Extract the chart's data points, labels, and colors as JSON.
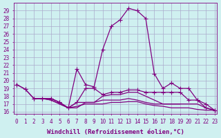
{
  "xlabel": "Windchill (Refroidissement éolien,°C)",
  "bg_color": "#cff0f0",
  "line_color": "#800080",
  "grid_color": "#aaaacc",
  "x_ticks": [
    0,
    1,
    2,
    3,
    4,
    5,
    6,
    7,
    8,
    9,
    10,
    11,
    12,
    13,
    14,
    15,
    16,
    17,
    18,
    19,
    20,
    21,
    22,
    23
  ],
  "y_ticks": [
    16,
    17,
    18,
    19,
    20,
    21,
    22,
    23,
    24,
    25,
    26,
    27,
    28,
    29
  ],
  "ylim": [
    15.7,
    30.0
  ],
  "xlim": [
    -0.3,
    23.3
  ],
  "series": [
    {
      "y": [
        19.5,
        18.9,
        17.7,
        17.7,
        17.7,
        17.2,
        16.5,
        17.2,
        19.0,
        19.0,
        18.2,
        18.5,
        18.5,
        18.8,
        18.8,
        18.5,
        18.5,
        18.5,
        18.5,
        18.5,
        17.5,
        17.5,
        16.5,
        16.2
      ],
      "marker": true
    },
    {
      "y": [
        19.5,
        18.9,
        17.7,
        17.7,
        17.7,
        17.2,
        16.5,
        21.5,
        19.5,
        19.2,
        24.0,
        27.0,
        27.8,
        29.3,
        29.0,
        28.0,
        20.9,
        19.0,
        19.7,
        19.0,
        19.0,
        17.5,
        17.0,
        16.2
      ],
      "marker": true
    },
    {
      "y": [
        null,
        null,
        17.7,
        17.7,
        17.7,
        17.2,
        16.5,
        17.2,
        17.2,
        17.2,
        17.5,
        17.5,
        17.5,
        17.7,
        17.5,
        17.2,
        17.0,
        17.0,
        17.0,
        17.0,
        17.0,
        17.0,
        16.5,
        16.2
      ],
      "marker": false
    },
    {
      "y": [
        null,
        null,
        17.7,
        17.7,
        17.5,
        17.0,
        16.5,
        16.7,
        17.0,
        17.0,
        17.0,
        17.2,
        17.2,
        17.3,
        17.3,
        17.0,
        16.8,
        16.7,
        16.5,
        16.5,
        16.5,
        16.3,
        16.2,
        16.2
      ],
      "marker": false
    },
    {
      "y": [
        null,
        null,
        17.7,
        17.7,
        17.5,
        17.0,
        16.5,
        16.5,
        17.2,
        17.2,
        18.0,
        18.2,
        18.2,
        18.5,
        18.5,
        18.0,
        17.5,
        17.0,
        17.0,
        17.0,
        null,
        null,
        null,
        null
      ],
      "marker": false
    }
  ],
  "marker_symbol": "+",
  "markersize": 4,
  "linewidth": 0.9,
  "tick_fontsize": 5.5,
  "label_fontsize": 6.5
}
